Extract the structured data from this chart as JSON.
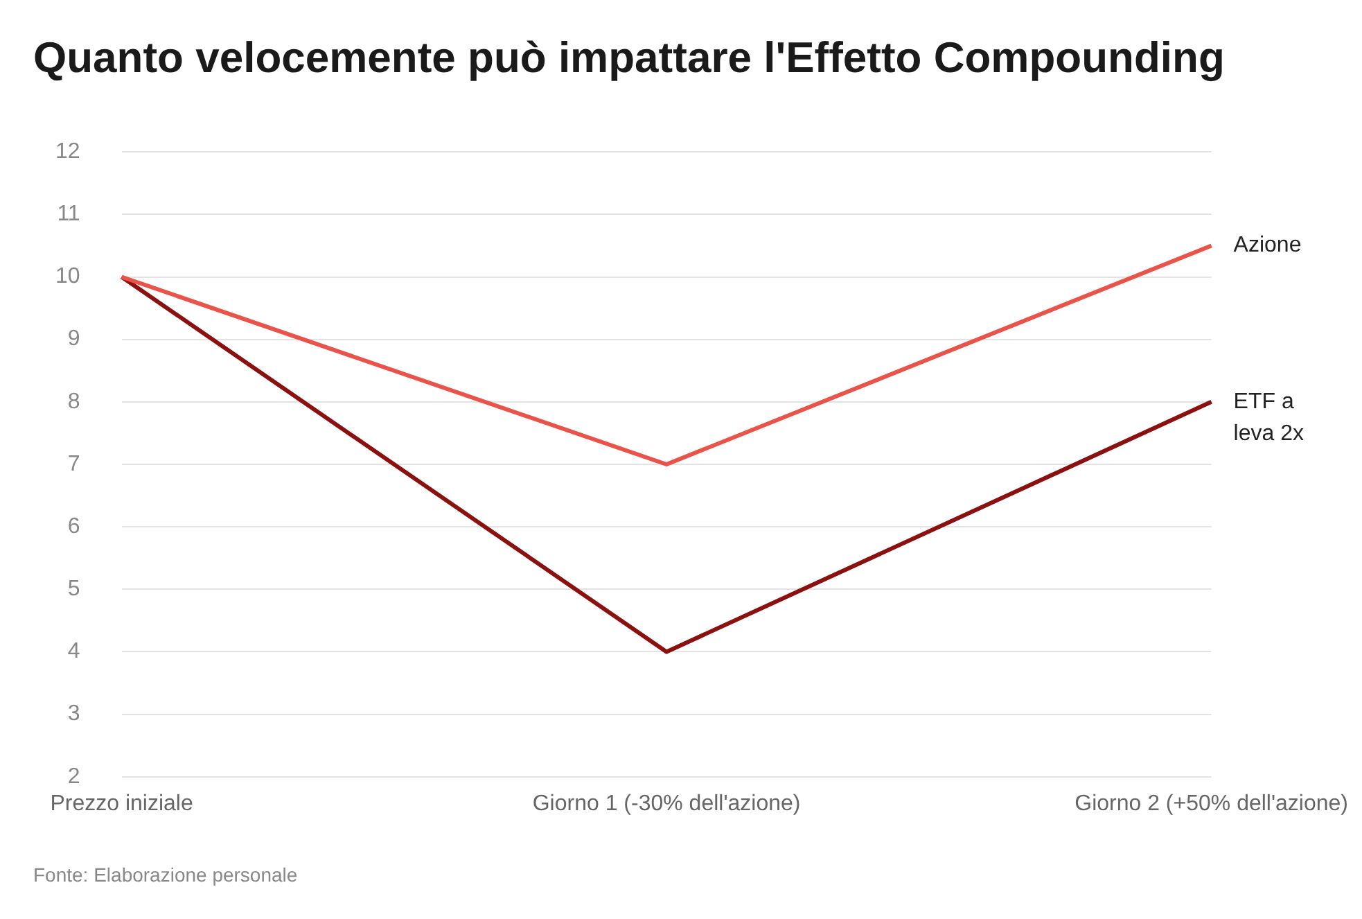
{
  "chart_data": {
    "type": "line",
    "title": "Quanto velocemente può impattare l'Effetto Compounding",
    "categories": [
      "Prezzo iniziale",
      "Giorno 1 (-30% dell'azione)",
      "Giorno 2 (+50% dell'azione)"
    ],
    "series": [
      {
        "name": "Azione",
        "color": "#e8534a",
        "values": [
          10,
          7,
          10.5
        ]
      },
      {
        "name": "ETF a leva 2x",
        "color": "#8b1111",
        "values": [
          10,
          4,
          8
        ]
      }
    ],
    "ylim": [
      2,
      12
    ],
    "yticks": [
      2,
      3,
      4,
      5,
      6,
      7,
      8,
      9,
      10,
      11,
      12
    ],
    "grid": "y",
    "legend": false,
    "marker": "none",
    "line_style": "solid",
    "annotations": [
      "Fonte: Elaborazione personale"
    ]
  }
}
